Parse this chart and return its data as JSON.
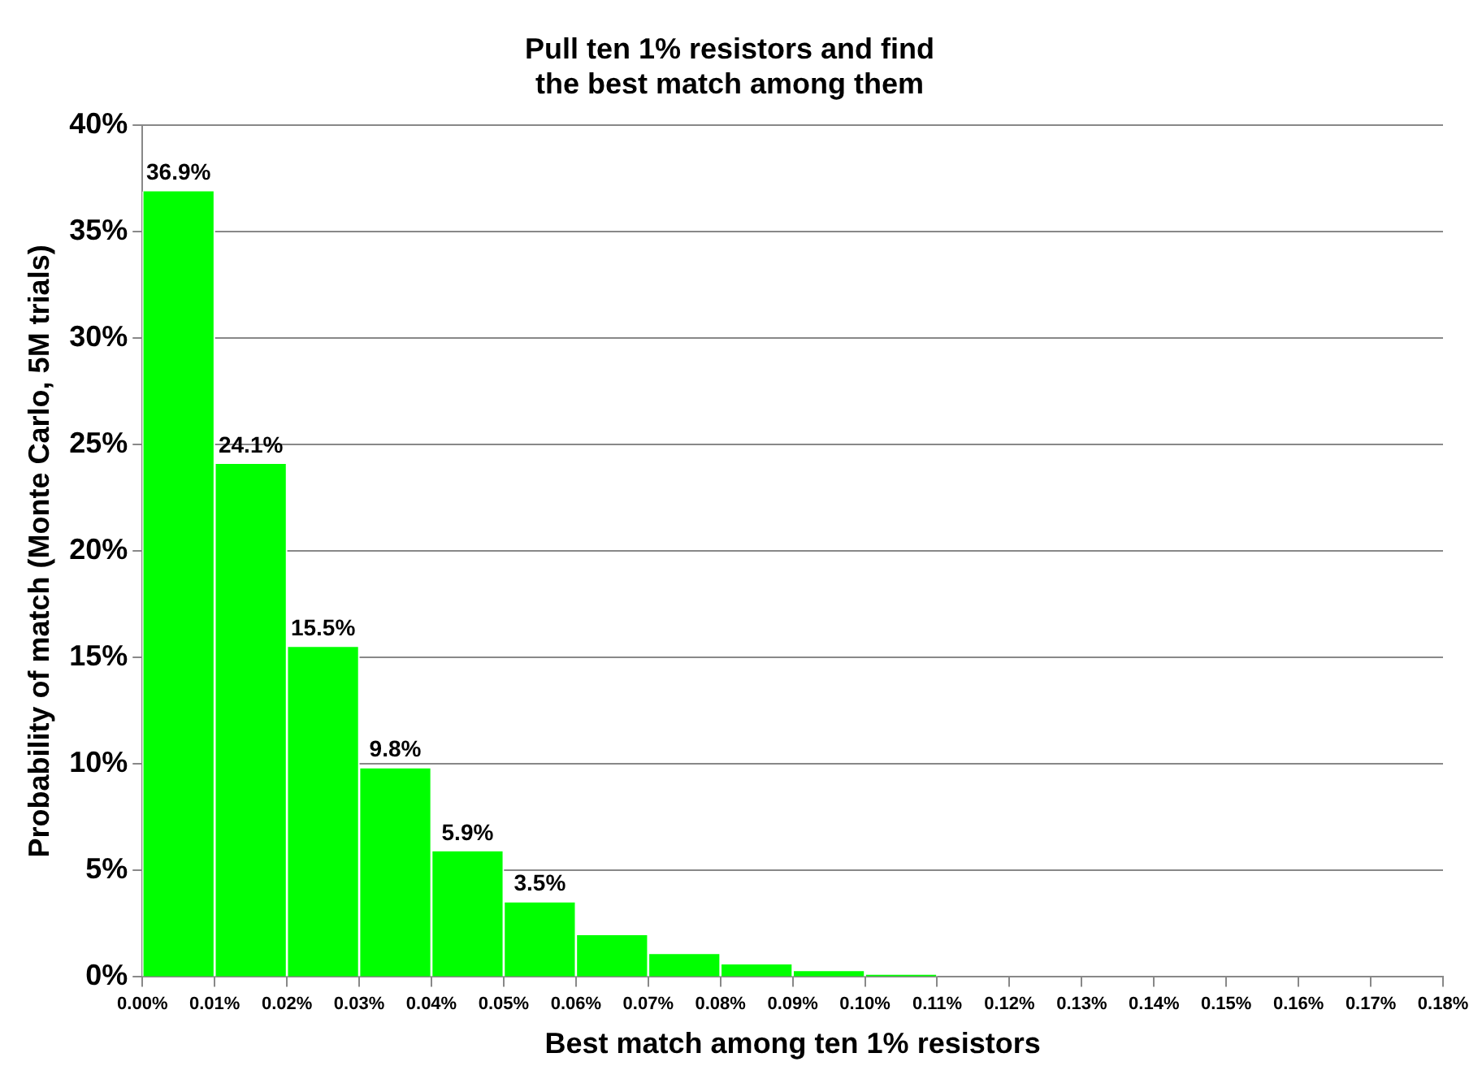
{
  "chart_data": {
    "type": "histogram",
    "title": [
      "Pull ten 1% resistors and find",
      "the best match among them"
    ],
    "xlabel": "Best match among ten 1% resistors",
    "ylabel": "Probability of match (Monte Carlo, 5M trials)",
    "bins": [
      0,
      0.01,
      0.02,
      0.03,
      0.04,
      0.05,
      0.06,
      0.07,
      0.08,
      0.09,
      0.1,
      0.11,
      0.12,
      0.13,
      0.14,
      0.15,
      0.16,
      0.17,
      0.18
    ],
    "values": [
      36.9,
      24.1,
      15.5,
      9.8,
      5.9,
      3.5,
      1.96,
      1.07,
      0.59,
      0.27,
      0.1,
      0,
      0,
      0,
      0,
      0,
      0,
      0
    ],
    "value_labels": [
      "36.9%",
      "24.1%",
      "15.5%",
      "9.8%",
      "5.9%",
      "3.5%",
      null,
      null,
      null,
      null,
      null,
      null,
      null,
      null,
      null,
      null,
      null,
      null
    ],
    "color": "#00ff00",
    "xlim": [
      0,
      0.18
    ],
    "xticks": [
      {
        "value": 0,
        "label": "0.00%"
      },
      {
        "value": 0.01,
        "label": "0.01%"
      },
      {
        "value": 0.02,
        "label": "0.02%"
      },
      {
        "value": 0.03,
        "label": "0.03%"
      },
      {
        "value": 0.04,
        "label": "0.04%"
      },
      {
        "value": 0.05,
        "label": "0.05%"
      },
      {
        "value": 0.06,
        "label": "0.06%"
      },
      {
        "value": 0.07,
        "label": "0.07%"
      },
      {
        "value": 0.08,
        "label": "0.08%"
      },
      {
        "value": 0.09,
        "label": "0.09%"
      },
      {
        "value": 0.1,
        "label": "0.10%"
      },
      {
        "value": 0.11,
        "label": "0.11%"
      },
      {
        "value": 0.12,
        "label": "0.12%"
      },
      {
        "value": 0.13,
        "label": "0.13%"
      },
      {
        "value": 0.14,
        "label": "0.14%"
      },
      {
        "value": 0.15,
        "label": "0.15%"
      },
      {
        "value": 0.16,
        "label": "0.16%"
      },
      {
        "value": 0.17,
        "label": "0.17%"
      },
      {
        "value": 0.18,
        "label": "0.18%"
      }
    ],
    "ylim": [
      0,
      40
    ],
    "yticks": [
      {
        "value": 0,
        "label": "0%"
      },
      {
        "value": 5,
        "label": "5%"
      },
      {
        "value": 10,
        "label": "10%"
      },
      {
        "value": 15,
        "label": "15%"
      },
      {
        "value": 20,
        "label": "20%"
      },
      {
        "value": 25,
        "label": "25%"
      },
      {
        "value": 30,
        "label": "30%"
      },
      {
        "value": 35,
        "label": "35%"
      },
      {
        "value": 40,
        "label": "40%"
      }
    ],
    "grid": "y",
    "legend": false
  }
}
